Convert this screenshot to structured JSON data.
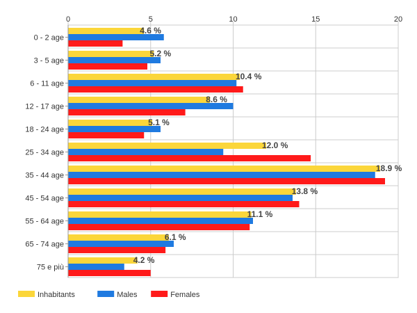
{
  "chart_data": {
    "type": "bar",
    "orientation": "horizontal",
    "categories": [
      "0 - 2 age",
      "3 - 5 age",
      "6 - 11 age",
      "12 - 17 age",
      "18 - 24 age",
      "25 - 34 age",
      "35 - 44 age",
      "45 - 54 age",
      "55 - 64 age",
      "65 - 74 age",
      "75 e più"
    ],
    "series": [
      {
        "name": "Inhabitants",
        "color": "#fbd63a",
        "values": [
          4.6,
          5.2,
          10.4,
          8.6,
          5.1,
          12.0,
          18.9,
          13.8,
          11.1,
          6.1,
          4.2
        ]
      },
      {
        "name": "Males",
        "color": "#1f7ae0",
        "values": [
          5.8,
          5.6,
          10.2,
          10.0,
          5.6,
          9.4,
          18.6,
          13.6,
          11.2,
          6.4,
          3.4
        ]
      },
      {
        "name": "Females",
        "color": "#ff1a1a",
        "values": [
          3.3,
          4.8,
          10.6,
          7.1,
          4.6,
          14.7,
          19.2,
          14.0,
          11.0,
          5.9,
          5.0
        ]
      }
    ],
    "data_labels": [
      "4.6 %",
      "5.2 %",
      "10.4 %",
      "8.6 %",
      "5.1 %",
      "12.0 %",
      "18.9 %",
      "13.8 %",
      "11.1 %",
      "6.1 %",
      "4.2 %"
    ],
    "xaxis": {
      "position": "top",
      "ticks": [
        0,
        5,
        10,
        15,
        20
      ],
      "range": [
        0,
        20
      ]
    },
    "grid": true,
    "legend": "bottom-left",
    "title": "",
    "xlabel": "",
    "ylabel": ""
  }
}
